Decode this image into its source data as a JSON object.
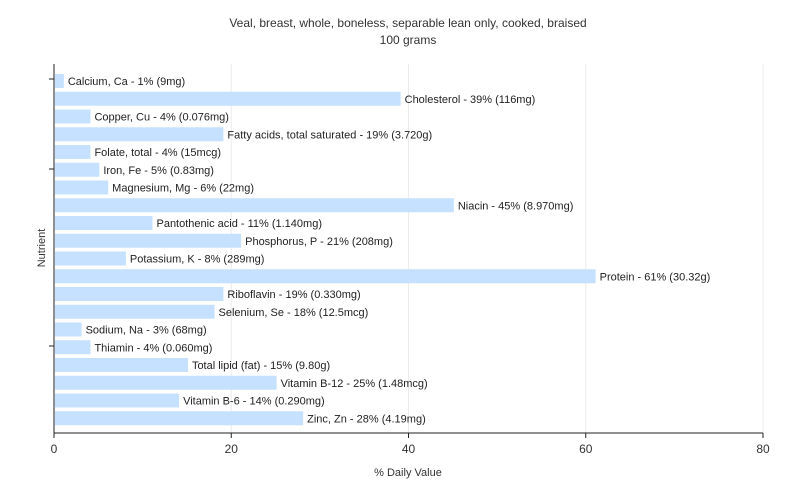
{
  "chart_data": {
    "type": "bar",
    "orientation": "horizontal",
    "title": "Veal, breast, whole, boneless, separable lean only, cooked, braised",
    "subtitle": "100 grams",
    "xlabel": "% Daily Value",
    "ylabel": "Nutrient",
    "xlim": [
      0,
      80
    ],
    "xticks": [
      "0",
      "20",
      "40",
      "60",
      "80"
    ],
    "grid": true,
    "bar_color": "#c6e0ff",
    "categories": [
      "Calcium, Ca",
      "Cholesterol",
      "Copper, Cu",
      "Fatty acids, total saturated",
      "Folate, total",
      "Iron, Fe",
      "Magnesium, Mg",
      "Niacin",
      "Pantothenic acid",
      "Phosphorus, P",
      "Potassium, K",
      "Protein",
      "Riboflavin",
      "Selenium, Se",
      "Sodium, Na",
      "Thiamin",
      "Total lipid (fat)",
      "Vitamin B-12",
      "Vitamin B-6",
      "Zinc, Zn"
    ],
    "values": [
      1,
      39,
      4,
      19,
      4,
      5,
      6,
      45,
      11,
      21,
      8,
      61,
      19,
      18,
      3,
      4,
      15,
      25,
      14,
      28
    ],
    "labels": [
      "Calcium, Ca - 1% (9mg)",
      "Cholesterol - 39% (116mg)",
      "Copper, Cu - 4% (0.076mg)",
      "Fatty acids, total saturated - 19% (3.720g)",
      "Folate, total - 4% (15mcg)",
      "Iron, Fe - 5% (0.83mg)",
      "Magnesium, Mg - 6% (22mg)",
      "Niacin - 45% (8.970mg)",
      "Pantothenic acid - 11% (1.140mg)",
      "Phosphorus, P - 21% (208mg)",
      "Potassium, K - 8% (289mg)",
      "Protein - 61% (30.32g)",
      "Riboflavin - 19% (0.330mg)",
      "Selenium, Se - 18% (12.5mcg)",
      "Sodium, Na - 3% (68mg)",
      "Thiamin - 4% (0.060mg)",
      "Total lipid (fat) - 15% (9.80g)",
      "Vitamin B-12 - 25% (1.48mcg)",
      "Vitamin B-6 - 14% (0.290mg)",
      "Zinc, Zn - 28% (4.19mg)"
    ]
  }
}
